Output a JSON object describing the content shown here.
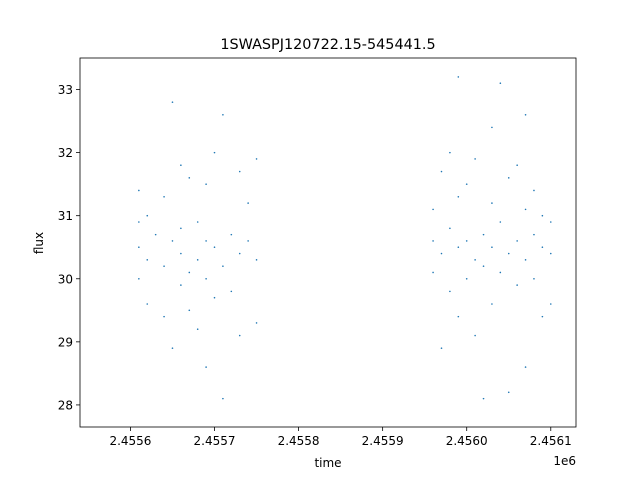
{
  "chart_data": {
    "type": "scatter",
    "title": "1SWASPJ120722.15-545441.5",
    "xlabel": "time",
    "ylabel": "flux",
    "x_offset_label": "1e6",
    "xlim": [
      2.45554,
      2.45613
    ],
    "ylim": [
      27.65,
      33.5
    ],
    "x_ticks": [
      {
        "value": 2.4556,
        "label": "2.4556"
      },
      {
        "value": 2.4557,
        "label": "2.4557"
      },
      {
        "value": 2.4558,
        "label": "2.4558"
      },
      {
        "value": 2.4559,
        "label": "2.4559"
      },
      {
        "value": 2.456,
        "label": "2.4560"
      },
      {
        "value": 2.4561,
        "label": "2.4561"
      }
    ],
    "y_ticks": [
      {
        "value": 28,
        "label": "28"
      },
      {
        "value": 29,
        "label": "29"
      },
      {
        "value": 30,
        "label": "30"
      },
      {
        "value": 31,
        "label": "31"
      },
      {
        "value": 32,
        "label": "32"
      },
      {
        "value": 33,
        "label": "33"
      }
    ],
    "grid": false,
    "marker_color": "#1f77b4",
    "series": [
      {
        "values": [
          {
            "x": 2.45561,
            "y": 30.5
          },
          {
            "x": 2.45561,
            "y": 30.9
          },
          {
            "x": 2.45561,
            "y": 30.0
          },
          {
            "x": 2.45561,
            "y": 31.4
          },
          {
            "x": 2.45562,
            "y": 30.3
          },
          {
            "x": 2.45562,
            "y": 29.6
          },
          {
            "x": 2.45562,
            "y": 31.0
          },
          {
            "x": 2.45563,
            "y": 30.7
          },
          {
            "x": 2.45564,
            "y": 30.2
          },
          {
            "x": 2.45564,
            "y": 31.3
          },
          {
            "x": 2.45564,
            "y": 29.4
          },
          {
            "x": 2.45565,
            "y": 30.6
          },
          {
            "x": 2.45565,
            "y": 32.8
          },
          {
            "x": 2.45565,
            "y": 28.9
          },
          {
            "x": 2.45566,
            "y": 30.4
          },
          {
            "x": 2.45566,
            "y": 31.8
          },
          {
            "x": 2.45566,
            "y": 29.9
          },
          {
            "x": 2.45566,
            "y": 30.8
          },
          {
            "x": 2.45567,
            "y": 30.1
          },
          {
            "x": 2.45567,
            "y": 31.6
          },
          {
            "x": 2.45567,
            "y": 29.5
          },
          {
            "x": 2.45568,
            "y": 30.3
          },
          {
            "x": 2.45568,
            "y": 30.9
          },
          {
            "x": 2.45568,
            "y": 29.2
          },
          {
            "x": 2.45569,
            "y": 30.6
          },
          {
            "x": 2.45569,
            "y": 31.5
          },
          {
            "x": 2.45569,
            "y": 28.6
          },
          {
            "x": 2.45569,
            "y": 30.0
          },
          {
            "x": 2.4557,
            "y": 30.5
          },
          {
            "x": 2.4557,
            "y": 32.0
          },
          {
            "x": 2.4557,
            "y": 29.7
          },
          {
            "x": 2.45571,
            "y": 30.2
          },
          {
            "x": 2.45571,
            "y": 32.6
          },
          {
            "x": 2.45571,
            "y": 28.1
          },
          {
            "x": 2.45572,
            "y": 30.7
          },
          {
            "x": 2.45572,
            "y": 29.8
          },
          {
            "x": 2.45573,
            "y": 30.4
          },
          {
            "x": 2.45573,
            "y": 31.7
          },
          {
            "x": 2.45573,
            "y": 29.1
          },
          {
            "x": 2.45574,
            "y": 30.6
          },
          {
            "x": 2.45574,
            "y": 31.2
          },
          {
            "x": 2.45575,
            "y": 30.3
          },
          {
            "x": 2.45575,
            "y": 31.9
          },
          {
            "x": 2.45575,
            "y": 29.3
          },
          {
            "x": 2.45596,
            "y": 30.6
          },
          {
            "x": 2.45596,
            "y": 30.1
          },
          {
            "x": 2.45596,
            "y": 31.1
          },
          {
            "x": 2.45597,
            "y": 30.4
          },
          {
            "x": 2.45597,
            "y": 31.7
          },
          {
            "x": 2.45597,
            "y": 28.9
          },
          {
            "x": 2.45598,
            "y": 30.8
          },
          {
            "x": 2.45598,
            "y": 29.8
          },
          {
            "x": 2.45598,
            "y": 32.0
          },
          {
            "x": 2.45599,
            "y": 30.5
          },
          {
            "x": 2.45599,
            "y": 31.3
          },
          {
            "x": 2.45599,
            "y": 29.4
          },
          {
            "x": 2.45599,
            "y": 33.2
          },
          {
            "x": 2.456,
            "y": 30.6
          },
          {
            "x": 2.456,
            "y": 30.0
          },
          {
            "x": 2.456,
            "y": 31.5
          },
          {
            "x": 2.45601,
            "y": 30.3
          },
          {
            "x": 2.45601,
            "y": 29.1
          },
          {
            "x": 2.45601,
            "y": 31.9
          },
          {
            "x": 2.45602,
            "y": 30.7
          },
          {
            "x": 2.45602,
            "y": 30.2
          },
          {
            "x": 2.45602,
            "y": 28.1
          },
          {
            "x": 2.45603,
            "y": 30.5
          },
          {
            "x": 2.45603,
            "y": 31.2
          },
          {
            "x": 2.45603,
            "y": 32.4
          },
          {
            "x": 2.45603,
            "y": 29.6
          },
          {
            "x": 2.45604,
            "y": 30.9
          },
          {
            "x": 2.45604,
            "y": 30.1
          },
          {
            "x": 2.45604,
            "y": 33.1
          },
          {
            "x": 2.45605,
            "y": 30.4
          },
          {
            "x": 2.45605,
            "y": 31.6
          },
          {
            "x": 2.45605,
            "y": 28.2
          },
          {
            "x": 2.45606,
            "y": 30.6
          },
          {
            "x": 2.45606,
            "y": 29.9
          },
          {
            "x": 2.45606,
            "y": 31.8
          },
          {
            "x": 2.45607,
            "y": 30.3
          },
          {
            "x": 2.45607,
            "y": 31.1
          },
          {
            "x": 2.45607,
            "y": 28.6
          },
          {
            "x": 2.45607,
            "y": 32.6
          },
          {
            "x": 2.45608,
            "y": 30.7
          },
          {
            "x": 2.45608,
            "y": 30.0
          },
          {
            "x": 2.45608,
            "y": 31.4
          },
          {
            "x": 2.45609,
            "y": 30.5
          },
          {
            "x": 2.45609,
            "y": 29.4
          },
          {
            "x": 2.45609,
            "y": 31.0
          },
          {
            "x": 2.4561,
            "y": 30.4
          },
          {
            "x": 2.4561,
            "y": 30.9
          },
          {
            "x": 2.4561,
            "y": 29.6
          }
        ]
      }
    ]
  }
}
